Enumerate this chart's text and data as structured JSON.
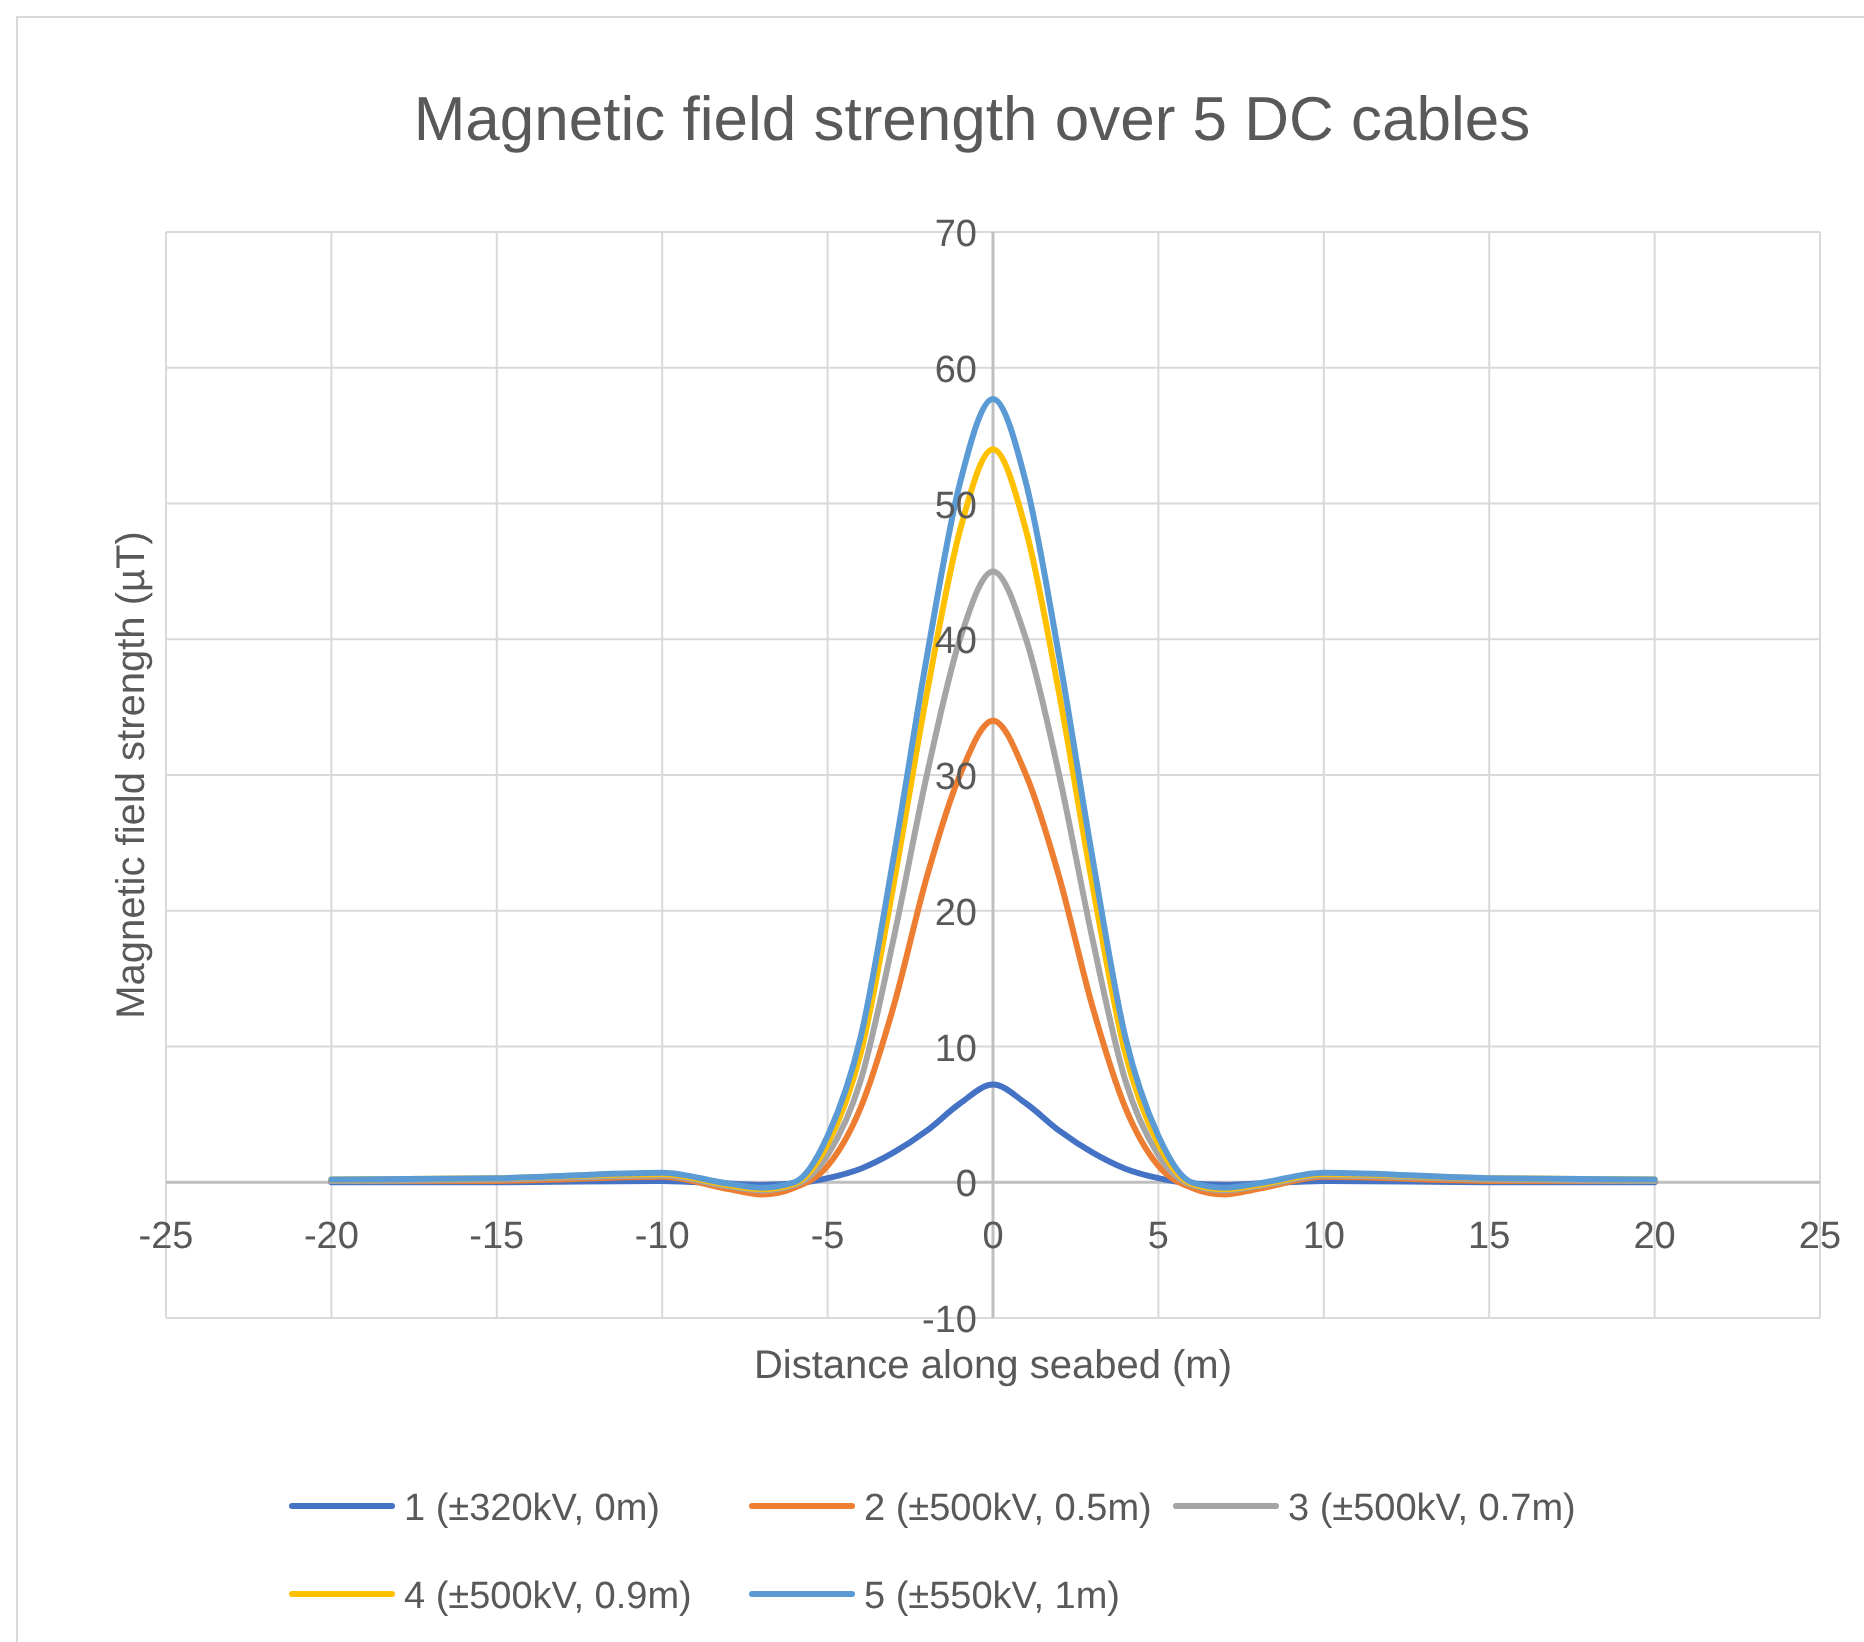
{
  "chart_data": {
    "type": "line",
    "title": "Magnetic field strength over 5 DC cables",
    "xlabel": "Distance along seabed (m)",
    "ylabel": "Magnetic field strength (µT)",
    "x": [
      -20,
      -15,
      -10,
      -8,
      -7,
      -6,
      -5,
      -4,
      -3,
      -2,
      -1,
      0,
      1,
      2,
      3,
      4,
      5,
      6,
      7,
      8,
      10,
      15,
      20
    ],
    "series": [
      {
        "name": "1 (±320kV, 0m)",
        "color": "#4472c4",
        "values": [
          0,
          0,
          0.1,
          -0.1,
          -0.2,
          -0.1,
          0.3,
          1,
          2.2,
          3.8,
          5.8,
          7.2,
          5.8,
          3.8,
          2.2,
          1,
          0.3,
          -0.1,
          -0.2,
          -0.1,
          0.1,
          0,
          0
        ]
      },
      {
        "name": "2 (±500kV, 0.5m)",
        "color": "#ed7d31",
        "values": [
          0.1,
          0.1,
          0.4,
          -0.5,
          -0.9,
          -0.4,
          1.2,
          5.5,
          13,
          22.5,
          30,
          34,
          30,
          22.5,
          13,
          5.5,
          1.2,
          -0.4,
          -0.9,
          -0.5,
          0.4,
          0.1,
          0.1
        ]
      },
      {
        "name": "3 (±500kV, 0.7m)",
        "color": "#a5a5a5",
        "values": [
          0.1,
          0.2,
          0.5,
          -0.3,
          -0.6,
          -0.2,
          2,
          7.5,
          18,
          30,
          40,
          45,
          40,
          30,
          18,
          7.5,
          2,
          -0.2,
          -0.6,
          -0.3,
          0.5,
          0.2,
          0.1
        ]
      },
      {
        "name": "4 (±500kV, 0.9m)",
        "color": "#ffc000",
        "values": [
          0.2,
          0.3,
          0.6,
          -0.2,
          -0.5,
          -0.1,
          2.8,
          9.5,
          22,
          36,
          48,
          54,
          48,
          36,
          22,
          9.5,
          2.8,
          -0.1,
          -0.5,
          -0.2,
          0.6,
          0.3,
          0.2
        ]
      },
      {
        "name": "5 (±550kV, 1m)",
        "color": "#5b9bd5",
        "values": [
          0.2,
          0.3,
          0.7,
          -0.1,
          -0.4,
          0,
          3.4,
          10.7,
          24,
          38.7,
          51.5,
          57.7,
          51.5,
          38.7,
          24,
          10.7,
          3.4,
          0,
          -0.4,
          -0.1,
          0.7,
          0.3,
          0.2
        ]
      }
    ],
    "xlim": [
      -25,
      25
    ],
    "xticks": [
      -25,
      -20,
      -15,
      -10,
      -5,
      0,
      5,
      10,
      15,
      20,
      25
    ],
    "ylim": [
      -10,
      70
    ],
    "yticks": [
      -10,
      0,
      10,
      20,
      30,
      40,
      50,
      60,
      70
    ],
    "grid": true,
    "legend": "bottom",
    "marker": "none",
    "line_style": "solid"
  }
}
